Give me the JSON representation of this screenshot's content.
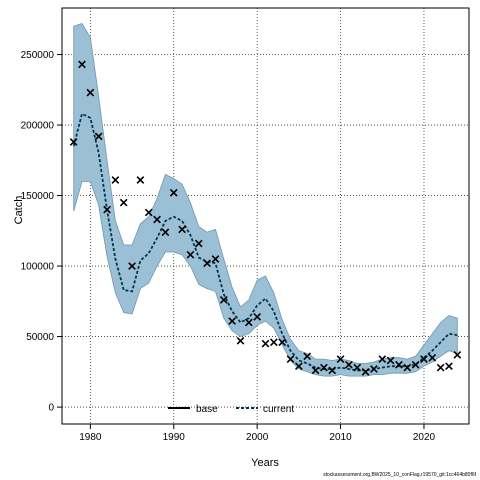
{
  "chart_data": {
    "type": "line",
    "xlabel": "Years",
    "ylabel": "Catch",
    "xlim": [
      1976.6,
      2025.4
    ],
    "ylim": [
      -12000,
      283000
    ],
    "x_ticks": [
      "1980",
      "1990",
      "2000",
      "2010",
      "2020"
    ],
    "y_ticks": [
      "0",
      "50000",
      "100000",
      "150000",
      "200000",
      "250000"
    ],
    "grid": true,
    "legend": {
      "placement": "bottom-center",
      "entries": [
        "base",
        "current"
      ]
    },
    "colors": {
      "band": "#9bbfd4",
      "band_edge": "#6d97b0",
      "current": "#00364d",
      "base": "#000000",
      "observed": "#000000"
    },
    "footer": "stockassessment.org,BW2025_10_conFlag,r19570_git:1cc464b80f6f",
    "observed": {
      "x": [
        1978,
        1979,
        1980,
        1981,
        1982,
        1983,
        1984,
        1985,
        1986,
        1987,
        1988,
        1989,
        1990,
        1991,
        1992,
        1993,
        1994,
        1995,
        1996,
        1997,
        1998,
        1999,
        2000,
        2001,
        2002,
        2003,
        2004,
        2005,
        2006,
        2007,
        2008,
        2009,
        2010,
        2011,
        2012,
        2013,
        2014,
        2015,
        2016,
        2017,
        2018,
        2019,
        2020,
        2021,
        2022,
        2023,
        2024
      ],
      "y": [
        188000,
        243000,
        223000,
        192000,
        140000,
        161000,
        145000,
        100000,
        161000,
        138000,
        133000,
        124000,
        152000,
        126000,
        108000,
        116000,
        102000,
        105000,
        76000,
        61000,
        47000,
        60000,
        64000,
        45000,
        46000,
        46000,
        34000,
        29000,
        36000,
        26000,
        28000,
        26000,
        34000,
        30000,
        28000,
        25000,
        27000,
        34000,
        33000,
        30000,
        28000,
        30000,
        34000,
        35000,
        28000,
        29000,
        37000
      ]
    },
    "series": [
      {
        "name": "current",
        "x": [
          1978,
          1979,
          1980,
          1981,
          1982,
          1983,
          1984,
          1985,
          1986,
          1987,
          1988,
          1989,
          1990,
          1991,
          1992,
          1993,
          1994,
          1995,
          1996,
          1997,
          1998,
          1999,
          2000,
          2001,
          2002,
          2003,
          2004,
          2005,
          2006,
          2007,
          2008,
          2009,
          2010,
          2011,
          2012,
          2013,
          2014,
          2015,
          2016,
          2017,
          2018,
          2019,
          2020,
          2021,
          2022,
          2023,
          2024
        ],
        "y": [
          185000,
          208000,
          205000,
          180000,
          140000,
          105000,
          83000,
          82000,
          104000,
          109000,
          120000,
          132000,
          135000,
          132000,
          122000,
          106000,
          103000,
          102000,
          80000,
          68000,
          60000,
          63000,
          72000,
          77000,
          68000,
          52000,
          40000,
          33000,
          31000,
          28000,
          27000,
          27000,
          28000,
          27000,
          26000,
          26000,
          27000,
          28000,
          29000,
          29000,
          29000,
          30000,
          35000,
          40000,
          46000,
          52000,
          51000
        ],
        "upper": [
          270000,
          272000,
          262000,
          220000,
          175000,
          132000,
          115000,
          115000,
          130000,
          135000,
          148000,
          165000,
          162000,
          158000,
          145000,
          128000,
          124000,
          126000,
          105000,
          85000,
          71000,
          76000,
          90000,
          93000,
          81000,
          62000,
          48000,
          40000,
          38000,
          34000,
          34000,
          33000,
          34000,
          33000,
          31000,
          31000,
          32000,
          34000,
          35000,
          35000,
          34000,
          36000,
          44000,
          52000,
          60000,
          65000,
          63000
        ],
        "lower": [
          139000,
          160000,
          160000,
          143000,
          107000,
          81000,
          67000,
          66000,
          84000,
          88000,
          100000,
          110000,
          110000,
          108000,
          100000,
          87000,
          84000,
          82000,
          63000,
          54000,
          50000,
          52000,
          58000,
          61000,
          56000,
          44000,
          33000,
          27000,
          25000,
          23000,
          22000,
          22000,
          23000,
          22000,
          22000,
          22000,
          23000,
          23000,
          24000,
          24000,
          24000,
          25000,
          29000,
          32000,
          36000,
          40000,
          38000
        ]
      }
    ]
  }
}
